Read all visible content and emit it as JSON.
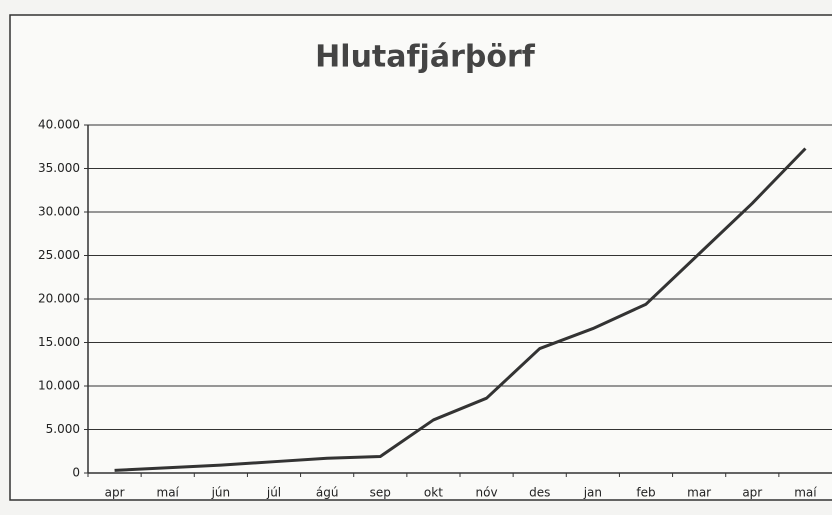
{
  "chart_data": {
    "type": "line",
    "title": "Hlutafjárþörf",
    "categories": [
      "apr",
      "maí",
      "jún",
      "júl",
      "ágú",
      "sep",
      "okt",
      "nóv",
      "des",
      "jan",
      "feb",
      "mar",
      "apr",
      "maí"
    ],
    "values": [
      300,
      600,
      900,
      1300,
      1700,
      1900,
      6100,
      8600,
      14300,
      16600,
      19400,
      25200,
      31000,
      37300
    ],
    "color": "#333333",
    "ylim": [
      0,
      40000
    ],
    "yticks": [
      0,
      {
        "value": 5000,
        "label": "5.000"
      },
      {
        "value": 10000,
        "label": "10.000"
      },
      {
        "value": 15000,
        "label": "15.000"
      },
      {
        "value": 20000,
        "label": "20.000"
      },
      {
        "value": 25000,
        "label": "25.000"
      },
      {
        "value": 30000,
        "label": "30.000"
      },
      {
        "value": 35000,
        "label": "35.000"
      },
      {
        "value": 40000,
        "label": "40.000"
      }
    ],
    "grid": true
  }
}
